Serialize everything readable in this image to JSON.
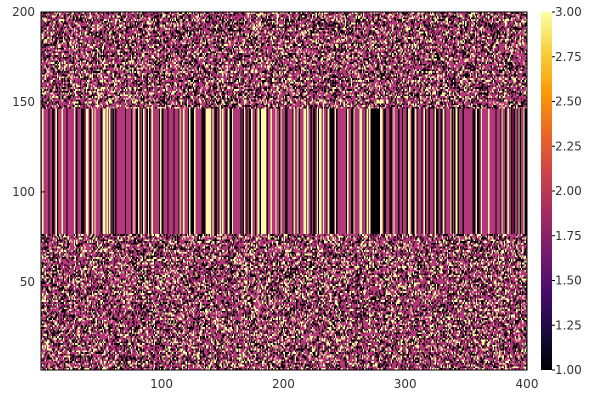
{
  "chart_data": {
    "type": "heatmap",
    "title": "",
    "xlabel": "",
    "ylabel": "",
    "x_range": [
      1,
      400
    ],
    "y_range": [
      1,
      200
    ],
    "columns": 400,
    "rows": 200,
    "x_ticks": [
      {
        "value": 100,
        "label": "100"
      },
      {
        "value": 200,
        "label": "200"
      },
      {
        "value": 300,
        "label": "300"
      },
      {
        "value": 400,
        "label": "400"
      }
    ],
    "y_ticks": [
      {
        "value": 50,
        "label": "50"
      },
      {
        "value": 100,
        "label": "100"
      },
      {
        "value": 150,
        "label": "150"
      },
      {
        "value": 200,
        "label": "200"
      }
    ],
    "value_levels": [
      1,
      2,
      3
    ],
    "bands": [
      {
        "y_from": 1,
        "y_to": 76,
        "pattern": "random per cell"
      },
      {
        "y_from": 77,
        "y_to": 146,
        "pattern": "constant per column"
      },
      {
        "y_from": 147,
        "y_to": 200,
        "pattern": "random per cell"
      }
    ],
    "level_shares": {
      "1": 0.28,
      "2": 0.52,
      "3": 0.2
    },
    "colorbar": {
      "colormap": "inferno",
      "range": [
        1.0,
        3.0
      ],
      "ticks": [
        {
          "value": 1.0,
          "label": "1.00"
        },
        {
          "value": 1.25,
          "label": "1.25"
        },
        {
          "value": 1.5,
          "label": "1.50"
        },
        {
          "value": 1.75,
          "label": "1.75"
        },
        {
          "value": 2.0,
          "label": "2.00"
        },
        {
          "value": 2.25,
          "label": "2.25"
        },
        {
          "value": 2.5,
          "label": "2.50"
        },
        {
          "value": 2.75,
          "label": "2.75"
        },
        {
          "value": 3.0,
          "label": "3.00"
        }
      ],
      "stops": [
        "#000004",
        "#1b0c41",
        "#4a0c6b",
        "#781c6d",
        "#a52c60",
        "#cf4446",
        "#ed6925",
        "#fb9b06",
        "#f7d13d",
        "#fcffa4"
      ]
    },
    "level_colors": {
      "1": "#000004",
      "2": "#b5367a",
      "3": "#fcffa4"
    },
    "grid": false,
    "legend": "colorbar-right"
  }
}
